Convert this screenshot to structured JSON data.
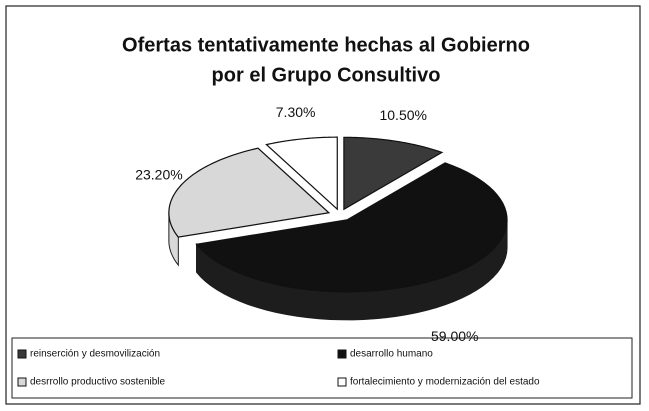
{
  "chart_data": {
    "type": "pie",
    "title": [
      "Ofertas tentativamente hechas al Gobierno",
      "por el Grupo Consultivo"
    ],
    "categories": [
      "reinserción y desmovilización",
      "desarrollo humano",
      "desrrollo productivo sostenible",
      "fortalecimiento y modernización del estado"
    ],
    "values": [
      10.5,
      59.0,
      23.2,
      7.3
    ],
    "value_labels": [
      "10.50%",
      "59.00%",
      "23.20%",
      "7.30%"
    ],
    "colors": [
      "#3a3a3a",
      "#111111",
      "#d8d8d8",
      "#ffffff"
    ],
    "legend": "bottom"
  }
}
